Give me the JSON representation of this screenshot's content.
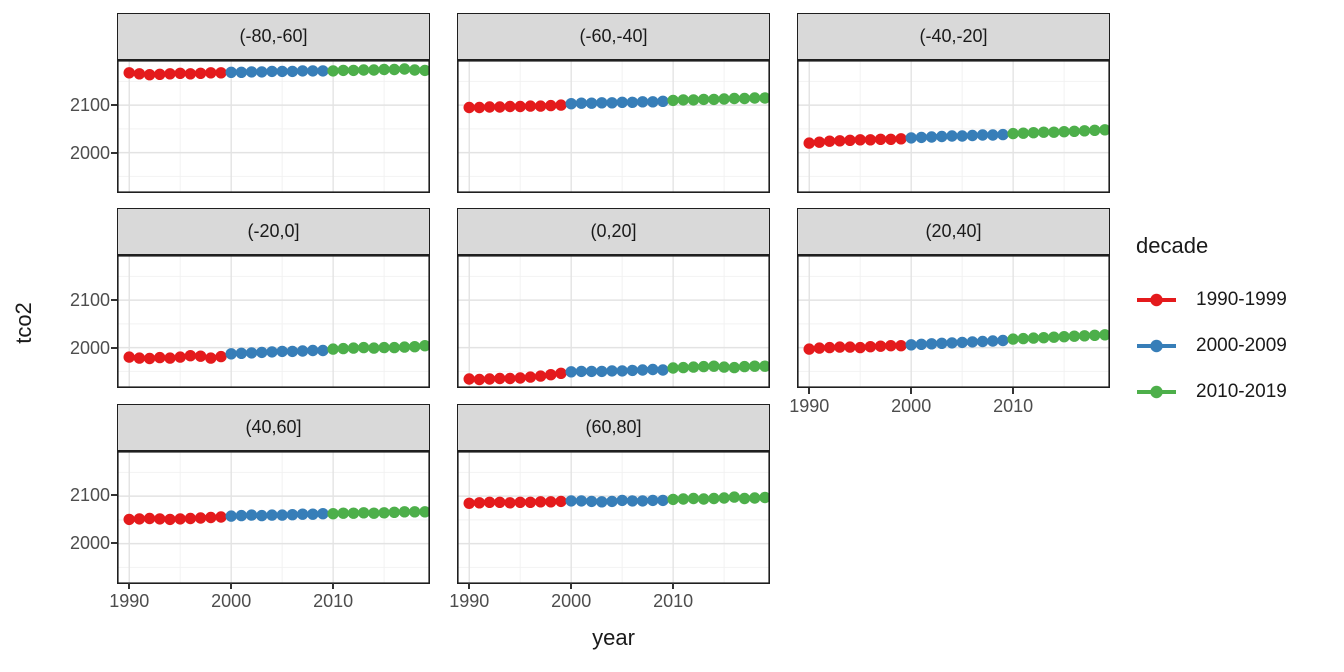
{
  "figure": {
    "background": "#ffffff",
    "x_axis_title": "year",
    "y_axis_title": "tco2",
    "legend": {
      "title": "decade",
      "entries": [
        {
          "label": "1990-1999",
          "color": "#e41a1c"
        },
        {
          "label": "2000-2009",
          "color": "#377eb8"
        },
        {
          "label": "2010-2019",
          "color": "#4daf4a"
        }
      ]
    }
  },
  "chart_data": {
    "type": "scatter",
    "title": "",
    "xlabel": "year",
    "ylabel": "tco2",
    "legend_title": "decade",
    "legend_position": "right",
    "grid": true,
    "xlim": [
      1988.8,
      2019.5
    ],
    "ylim": [
      1915,
      2195
    ],
    "x_ticks": [
      1990,
      2000,
      2010
    ],
    "y_ticks": [
      2000,
      2100
    ],
    "x_minor_ticks": [
      1995,
      2005,
      2015
    ],
    "y_minor_ticks": [
      1950,
      2050,
      2150
    ],
    "series_colors": {
      "1990-1999": "#e41a1c",
      "2000-2009": "#377eb8",
      "2010-2019": "#4daf4a"
    },
    "series_years": {
      "1990-1999": [
        1990,
        1991,
        1992,
        1993,
        1994,
        1995,
        1996,
        1997,
        1998,
        1999
      ],
      "2000-2009": [
        2000,
        2001,
        2002,
        2003,
        2004,
        2005,
        2006,
        2007,
        2008,
        2009
      ],
      "2010-2019": [
        2010,
        2011,
        2012,
        2013,
        2014,
        2015,
        2016,
        2017,
        2018,
        2019
      ]
    },
    "facets": [
      {
        "label": "(-80,-60]",
        "series": [
          {
            "name": "1990-1999",
            "values": [
              2168,
              2166,
              2164,
              2165,
              2166,
              2167,
              2166,
              2167,
              2168,
              2168
            ]
          },
          {
            "name": "2000-2009",
            "values": [
              2169,
              2169,
              2170,
              2170,
              2171,
              2171,
              2171,
              2172,
              2172,
              2172
            ]
          },
          {
            "name": "2010-2019",
            "values": [
              2172,
              2173,
              2173,
              2174,
              2174,
              2175,
              2175,
              2176,
              2174,
              2173
            ]
          }
        ]
      },
      {
        "label": "(-60,-40]",
        "series": [
          {
            "name": "1990-1999",
            "values": [
              2095,
              2095,
              2096,
              2096,
              2097,
              2097,
              2098,
              2098,
              2099,
              2100
            ]
          },
          {
            "name": "2000-2009",
            "values": [
              2103,
              2104,
              2104,
              2105,
              2105,
              2106,
              2106,
              2107,
              2107,
              2108
            ]
          },
          {
            "name": "2010-2019",
            "values": [
              2110,
              2111,
              2111,
              2112,
              2112,
              2113,
              2114,
              2114,
              2115,
              2115
            ]
          }
        ]
      },
      {
        "label": "(-40,-20]",
        "series": [
          {
            "name": "1990-1999",
            "values": [
              2020,
              2022,
              2024,
              2025,
              2026,
              2027,
              2027,
              2028,
              2028,
              2029
            ]
          },
          {
            "name": "2000-2009",
            "values": [
              2031,
              2032,
              2033,
              2034,
              2035,
              2035,
              2036,
              2037,
              2037,
              2038
            ]
          },
          {
            "name": "2010-2019",
            "values": [
              2040,
              2041,
              2042,
              2043,
              2043,
              2044,
              2045,
              2046,
              2047,
              2048
            ]
          }
        ]
      },
      {
        "label": "(-20,0]",
        "series": [
          {
            "name": "1990-1999",
            "values": [
              1980,
              1978,
              1977,
              1979,
              1978,
              1980,
              1983,
              1982,
              1978,
              1981
            ]
          },
          {
            "name": "2000-2009",
            "values": [
              1987,
              1988,
              1989,
              1990,
              1991,
              1992,
              1992,
              1993,
              1994,
              1994
            ]
          },
          {
            "name": "2010-2019",
            "values": [
              1997,
              1998,
              1999,
              2000,
              1999,
              2000,
              2000,
              2001,
              2002,
              2004
            ]
          }
        ]
      },
      {
        "label": "(0,20]",
        "series": [
          {
            "name": "1990-1999",
            "values": [
              1934,
              1933,
              1934,
              1935,
              1935,
              1936,
              1938,
              1940,
              1943,
              1946
            ]
          },
          {
            "name": "2000-2009",
            "values": [
              1949,
              1950,
              1950,
              1950,
              1951,
              1951,
              1952,
              1953,
              1954,
              1953
            ]
          },
          {
            "name": "2010-2019",
            "values": [
              1957,
              1958,
              1959,
              1960,
              1961,
              1959,
              1958,
              1960,
              1961,
              1961
            ]
          }
        ]
      },
      {
        "label": "(20,40]",
        "series": [
          {
            "name": "1990-1999",
            "values": [
              1997,
              1999,
              2000,
              2001,
              2001,
              2000,
              2002,
              2003,
              2004,
              2004
            ]
          },
          {
            "name": "2000-2009",
            "values": [
              2006,
              2007,
              2008,
              2009,
              2010,
              2011,
              2012,
              2013,
              2014,
              2015
            ]
          },
          {
            "name": "2010-2019",
            "values": [
              2018,
              2019,
              2020,
              2021,
              2022,
              2023,
              2024,
              2025,
              2026,
              2027
            ]
          }
        ]
      },
      {
        "label": "(40,60]",
        "series": [
          {
            "name": "1990-1999",
            "values": [
              2051,
              2052,
              2053,
              2052,
              2051,
              2052,
              2053,
              2054,
              2055,
              2056
            ]
          },
          {
            "name": "2000-2009",
            "values": [
              2058,
              2059,
              2060,
              2059,
              2060,
              2060,
              2061,
              2062,
              2062,
              2063
            ]
          },
          {
            "name": "2010-2019",
            "values": [
              2063,
              2064,
              2064,
              2065,
              2064,
              2065,
              2066,
              2067,
              2067,
              2067
            ]
          }
        ]
      },
      {
        "label": "(60,80]",
        "series": [
          {
            "name": "1990-1999",
            "values": [
              2085,
              2086,
              2087,
              2087,
              2086,
              2087,
              2087,
              2088,
              2088,
              2089
            ]
          },
          {
            "name": "2000-2009",
            "values": [
              2090,
              2090,
              2089,
              2088,
              2089,
              2091,
              2090,
              2090,
              2091,
              2091
            ]
          },
          {
            "name": "2010-2019",
            "values": [
              2093,
              2094,
              2095,
              2094,
              2095,
              2096,
              2098,
              2095,
              2096,
              2097
            ]
          }
        ]
      }
    ]
  }
}
